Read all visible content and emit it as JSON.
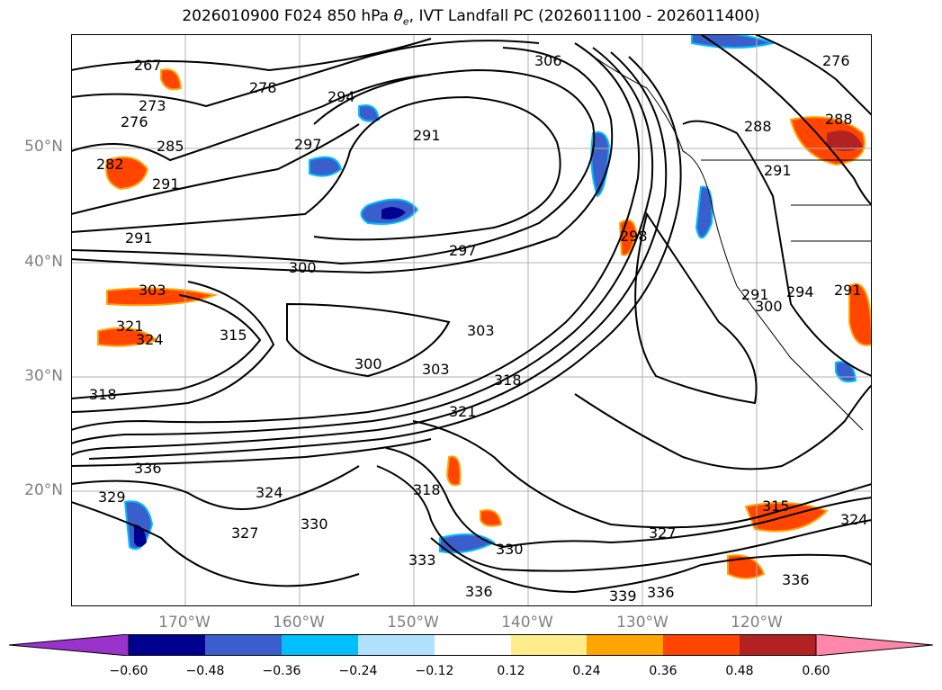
{
  "title": {
    "prefix": "2026010900 F024 850 hPa ",
    "symbol": "θ",
    "subscript": "e",
    "suffix": ", IVT Landfall PC (2026011100 - 2026011400)"
  },
  "map": {
    "lat_labels": [
      "50°N",
      "40°N",
      "30°N",
      "20°N"
    ],
    "lon_labels": [
      "170°W",
      "160°W",
      "150°W",
      "140°W",
      "130°W",
      "120°W"
    ],
    "contour_labels": [
      "267",
      "273",
      "276",
      "282",
      "285",
      "291",
      "297",
      "294",
      "291",
      "298",
      "278",
      "306",
      "276",
      "288",
      "291",
      "288",
      "291",
      "297",
      "300",
      "303",
      "321",
      "324",
      "315",
      "318",
      "300",
      "303",
      "303",
      "318",
      "321",
      "336",
      "324",
      "327",
      "330",
      "318",
      "333",
      "330",
      "336",
      "339",
      "336",
      "327",
      "315",
      "336",
      "324",
      "329",
      "294",
      "291",
      "291",
      "300"
    ]
  },
  "colorbar": {
    "ticks": [
      "−0.60",
      "−0.48",
      "−0.36",
      "−0.24",
      "−0.12",
      "0.12",
      "0.24",
      "0.36",
      "0.48",
      "0.60"
    ],
    "colors": [
      "#9933cc",
      "#000090",
      "#3a5fcd",
      "#00bfff",
      "#b0e2ff",
      "#ffffff",
      "#ffec8b",
      "#ffa500",
      "#ff4500",
      "#b22222",
      "#ff88aa"
    ]
  }
}
